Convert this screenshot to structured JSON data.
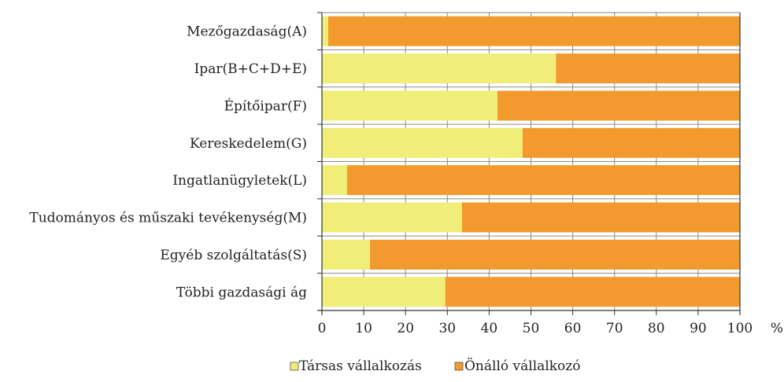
{
  "chart_data": {
    "type": "bar",
    "orientation": "horizontal",
    "stacked": true,
    "categories": [
      "Mezőgazdaság(A)",
      "Ipar(B+C+D+E)",
      "Építőipar(F)",
      "Kereskedelem(G)",
      "Ingatlanügyletek(L)",
      "Tudományos és műszaki tevékenység(M)",
      "Egyéb szolgáltatás(S)",
      "Többi gazdasági ág"
    ],
    "series": [
      {
        "name": "Társas vállalkozás",
        "color": "#f0ed78",
        "values": [
          1.5,
          56,
          42,
          48,
          6,
          33.5,
          11.5,
          29.5
        ]
      },
      {
        "name": "Önálló vállalkozó",
        "color": "#f29a2e",
        "values": [
          98.5,
          44,
          58,
          52,
          94,
          66.5,
          88.5,
          70.5
        ]
      }
    ],
    "xlim": [
      0,
      100
    ],
    "x_ticks": [
      "0",
      "10",
      "20",
      "30",
      "40",
      "50",
      "60",
      "70",
      "80",
      "90",
      "100"
    ],
    "x_unit": "%",
    "grid": true,
    "legend_position": "bottom"
  }
}
